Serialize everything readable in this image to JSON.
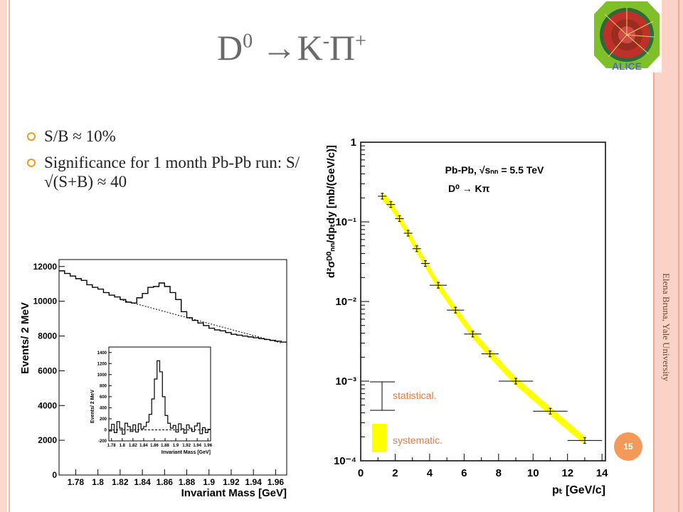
{
  "slide": {
    "title_main": "D",
    "title_sup1": "0",
    "title_arrow": " →K",
    "title_sup2": "-",
    "title_pi": "Π",
    "title_sup3": "+",
    "bullets": [
      "S/B ≈ 10%",
      "Significance for 1 month Pb-Pb run: S/√(S+B) ≈ 40"
    ],
    "sidebar_text": "Elena Bruna, Yale University",
    "page_number": "15",
    "logo_text": "ALICE"
  },
  "chart_data": [
    {
      "type": "line",
      "xlabel": "Invariant Mass [GeV]",
      "ylabel": "Events/ 2 MeV",
      "xlim": [
        1.765,
        1.97
      ],
      "ylim": [
        0,
        12400
      ],
      "x_ticks": [
        "1.78",
        "1.8",
        "1.82",
        "1.84",
        "1.86",
        "1.88",
        "1.9",
        "1.92",
        "1.94",
        "1.96"
      ],
      "y_ticks": [
        "0",
        "2000",
        "4000",
        "6000",
        "8000",
        "10000",
        "12000"
      ],
      "series": [
        {
          "style": "histogram",
          "x": [
            1.765,
            1.77,
            1.775,
            1.78,
            1.785,
            1.79,
            1.795,
            1.8,
            1.805,
            1.81,
            1.815,
            1.82,
            1.825,
            1.83,
            1.835,
            1.84,
            1.845,
            1.85,
            1.855,
            1.86,
            1.865,
            1.87,
            1.875,
            1.88,
            1.885,
            1.89,
            1.895,
            1.9,
            1.905,
            1.91,
            1.915,
            1.92,
            1.925,
            1.93,
            1.935,
            1.94,
            1.945,
            1.95,
            1.955,
            1.96,
            1.965
          ],
          "y": [
            11750,
            11600,
            11450,
            11300,
            11200,
            10950,
            10800,
            10700,
            10500,
            10350,
            10250,
            10100,
            9950,
            9900,
            10200,
            10450,
            10800,
            10850,
            11050,
            10850,
            10500,
            10100,
            9400,
            9050,
            8900,
            8750,
            8600,
            8450,
            8350,
            8300,
            8200,
            8100,
            8050,
            8000,
            7950,
            7900,
            7850,
            7800,
            7750,
            7700,
            7650
          ]
        },
        {
          "style": "dotted",
          "x": [
            1.82,
            1.965
          ],
          "y": [
            10100,
            7600
          ]
        }
      ]
    },
    {
      "type": "line",
      "xlabel": "Invariant Mass [GeV]",
      "ylabel": "Events/ 2 MeV",
      "xlim": [
        1.775,
        1.965
      ],
      "ylim": [
        -200,
        1500
      ],
      "x_ticks": [
        "1.78",
        "1.8",
        "1.82",
        "1.84",
        "1.86",
        "1.88",
        "1.9",
        "1.92",
        "1.94",
        "1.96"
      ],
      "y_ticks": [
        "-200",
        "0",
        "200",
        "400",
        "600",
        "800",
        "1000",
        "1200",
        "1400"
      ],
      "series": [
        {
          "style": "histogram",
          "x": [
            1.775,
            1.78,
            1.785,
            1.79,
            1.795,
            1.8,
            1.805,
            1.81,
            1.815,
            1.82,
            1.825,
            1.83,
            1.835,
            1.84,
            1.845,
            1.85,
            1.855,
            1.86,
            1.865,
            1.87,
            1.875,
            1.88,
            1.885,
            1.89,
            1.895,
            1.9,
            1.905,
            1.91,
            1.915,
            1.92,
            1.925,
            1.93,
            1.935,
            1.94,
            1.945,
            1.95,
            1.955,
            1.96
          ],
          "y": [
            -20,
            100,
            -50,
            150,
            30,
            -80,
            120,
            60,
            -30,
            90,
            -40,
            110,
            20,
            60,
            140,
            280,
            560,
            920,
            1250,
            1050,
            600,
            260,
            120,
            30,
            80,
            -40,
            110,
            20,
            -60,
            90,
            30,
            -30,
            70,
            120,
            -70,
            40,
            -50,
            10
          ]
        },
        {
          "style": "dashed",
          "x": [
            1.775,
            1.965
          ],
          "y": [
            0,
            0
          ]
        }
      ]
    },
    {
      "type": "scatter",
      "title": "Pb-Pb, √sₙₙ = 5.5 TeV",
      "subtitle": "D⁰ → Kπ",
      "xlabel": "pₜ [GeV/c]",
      "ylabel": "d²σᴰ⁰ₙₙ/dpₜdy [mb/(GeV/c)]",
      "xlim": [
        0,
        14.2
      ],
      "ylim": [
        0.0001,
        1
      ],
      "y_scale": "log",
      "x_ticks": [
        "0",
        "2",
        "4",
        "6",
        "8",
        "10",
        "12",
        "14"
      ],
      "y_ticks": [
        "10⁻⁴",
        "10⁻³",
        "10⁻²",
        "10⁻¹",
        "1"
      ],
      "band_color": "#ffff00",
      "legend": [
        "statistical.",
        "systematic."
      ],
      "x": [
        1.25,
        1.75,
        2.25,
        2.75,
        3.25,
        3.75,
        4.5,
        5.5,
        6.5,
        7.5,
        9.0,
        11.0,
        13.0
      ],
      "y": [
        0.21,
        0.165,
        0.11,
        0.072,
        0.046,
        0.03,
        0.016,
        0.0078,
        0.0039,
        0.0022,
        0.001,
        0.00042,
        0.00018
      ],
      "xerr": [
        0.25,
        0.25,
        0.25,
        0.25,
        0.25,
        0.25,
        0.5,
        0.5,
        0.5,
        0.5,
        1.0,
        1.0,
        1.0
      ]
    }
  ]
}
